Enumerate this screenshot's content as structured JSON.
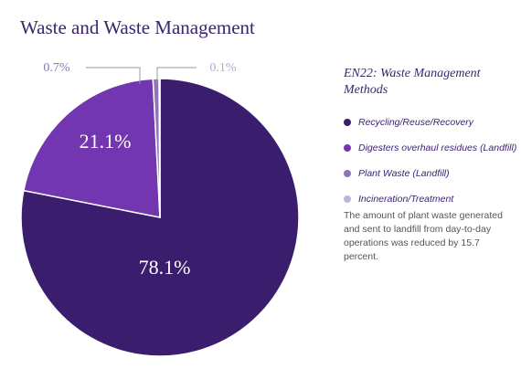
{
  "chart_data": {
    "type": "pie",
    "title": "Waste and Waste Management",
    "legend_title": "EN22: Waste Management Methods",
    "legend_position": "right",
    "slices": [
      {
        "label": "Recycling/Reuse/Recovery",
        "value": 78.1,
        "display": "78.1%",
        "color": "#3b1d6e"
      },
      {
        "label": "Digesters overhaul residues (Landfill)",
        "value": 21.1,
        "display": "21.1%",
        "color": "#7236b0"
      },
      {
        "label": "Plant Waste (Landfill)",
        "value": 0.7,
        "display": "0.7%",
        "color": "#8e75b4"
      },
      {
        "label": "Incineration/Treatment",
        "value": 0.1,
        "display": "0.1%",
        "color": "#c0b4d8"
      }
    ]
  },
  "note": "The amount of plant waste generated and sent to landfill from day-to-day operations was reduced by 15.7 percent."
}
